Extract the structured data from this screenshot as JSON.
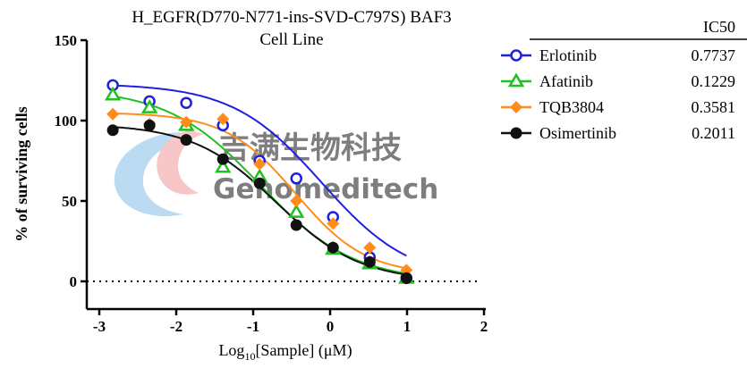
{
  "chart_data": {
    "type": "scatter",
    "title_line1": "H_EGFR(D770-N771-ins-SVD-C797S) BAF3",
    "title_line2": "Cell Line",
    "xlabel_prefix": "Log",
    "xlabel_sub": "10",
    "xlabel_suffix": "[Sample] (μM)",
    "ylabel": "% of surviving cells",
    "xlim": [
      -3,
      2
    ],
    "ylim": [
      0,
      150
    ],
    "xticks": [
      "-3",
      "-2",
      "-1",
      "0",
      "1",
      "2"
    ],
    "yticks": [
      "0",
      "50",
      "100",
      "150"
    ],
    "reference_line": 0,
    "legend_header": "IC50",
    "legend_position": "top-right",
    "series": [
      {
        "name": "Erlotinib",
        "ic50": "0.7737",
        "marker": "circle-open",
        "color": "#1f1fe0",
        "x": [
          -2.824,
          -2.347,
          -1.87,
          -1.393,
          -0.916,
          -0.439,
          0.038,
          0.515,
          0.992
        ],
        "y": [
          122,
          112,
          111,
          97,
          75,
          64,
          40,
          15,
          2
        ],
        "fit": {
          "top": 123,
          "bottom": 0,
          "log_ic50": -0.111,
          "hill": 0.75
        }
      },
      {
        "name": "Afatinib",
        "ic50": "0.1229",
        "marker": "triangle-open",
        "color": "#1fc01f",
        "x": [
          -2.824,
          -2.347,
          -1.87,
          -1.393,
          -0.916,
          -0.439,
          0.038,
          0.515,
          0.992
        ],
        "y": [
          116,
          108,
          97,
          71,
          65,
          43,
          20,
          11,
          2
        ],
        "fit": {
          "top": 120,
          "bottom": 0,
          "log_ic50": -0.91,
          "hill": 0.72
        }
      },
      {
        "name": "TQB3804",
        "ic50": "0.3581",
        "marker": "diamond-filled",
        "color": "#ff8c1a",
        "x": [
          -2.824,
          -2.347,
          -1.87,
          -1.393,
          -0.916,
          -0.439,
          0.038,
          0.515,
          0.992
        ],
        "y": [
          104,
          98,
          99,
          101,
          73,
          50,
          36,
          21,
          7
        ],
        "fit": {
          "top": 105,
          "bottom": 4,
          "log_ic50": -0.446,
          "hill": 0.95
        }
      },
      {
        "name": "Osimertinib",
        "ic50": "0.2011",
        "marker": "circle-filled",
        "color": "#111111",
        "x": [
          -2.824,
          -2.347,
          -1.87,
          -1.393,
          -0.916,
          -0.439,
          0.038,
          0.515,
          0.992
        ],
        "y": [
          94,
          97,
          88,
          76,
          61,
          35,
          21,
          12,
          2
        ],
        "fit": {
          "top": 98,
          "bottom": 0,
          "log_ic50": -0.697,
          "hill": 0.8
        }
      }
    ]
  },
  "watermark": {
    "cn": "吉满生物科技",
    "en": "Genomeditech"
  }
}
